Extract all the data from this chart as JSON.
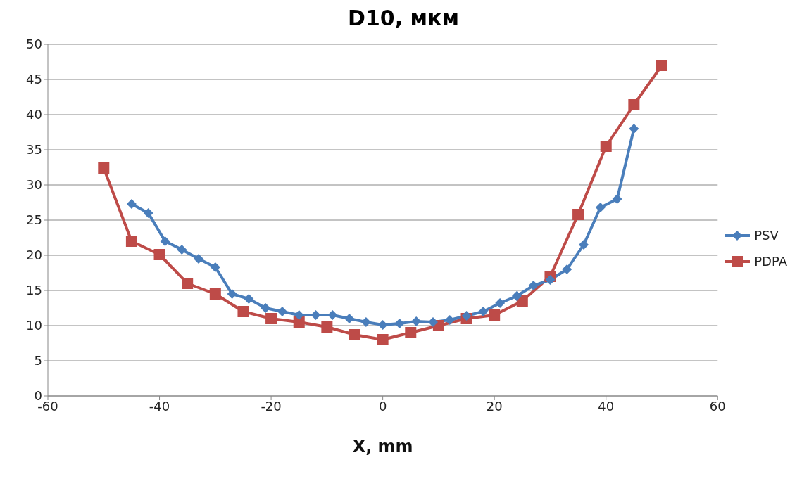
{
  "chart_data": {
    "type": "line",
    "title": "D10, мкм",
    "xlabel": "X, mm",
    "xlim": [
      -60,
      60
    ],
    "xticks": [
      -60,
      -40,
      -20,
      0,
      20,
      40,
      60
    ],
    "ylim": [
      0,
      50
    ],
    "yticks": [
      0,
      5,
      10,
      15,
      20,
      25,
      30,
      35,
      40,
      45,
      50
    ],
    "grid": "y",
    "legend": "right",
    "line_style": "solid",
    "series": [
      {
        "name": "PSV",
        "color": "#4a7ebb",
        "marker": "diamond",
        "x": [
          -45,
          -42,
          -39,
          -36,
          -33,
          -30,
          -27,
          -24,
          -21,
          -18,
          -15,
          -12,
          -9,
          -6,
          -3,
          0,
          3,
          6,
          9,
          12,
          15,
          18,
          21,
          24,
          27,
          30,
          33,
          36,
          39,
          42,
          45
        ],
        "values": [
          27.3,
          26,
          22,
          20.8,
          19.5,
          18.3,
          14.5,
          13.8,
          12.5,
          12,
          11.5,
          11.5,
          11.5,
          11,
          10.5,
          10.1,
          10.3,
          10.6,
          10.5,
          10.8,
          11.4,
          12,
          13.2,
          14.2,
          15.7,
          16.5,
          18,
          21.5,
          26.8,
          28,
          38
        ]
      },
      {
        "name": "PDPA",
        "color": "#be4b48",
        "marker": "square",
        "x": [
          -50,
          -45,
          -40,
          -35,
          -30,
          -25,
          -20,
          -15,
          -10,
          -5,
          0,
          5,
          10,
          15,
          20,
          25,
          30,
          35,
          40,
          45,
          50
        ],
        "values": [
          32.4,
          22,
          20.1,
          16,
          14.5,
          12,
          11,
          10.5,
          9.8,
          8.7,
          8,
          9,
          10,
          11,
          11.5,
          13.5,
          17,
          25.8,
          35.5,
          41.4,
          47
        ]
      }
    ]
  }
}
